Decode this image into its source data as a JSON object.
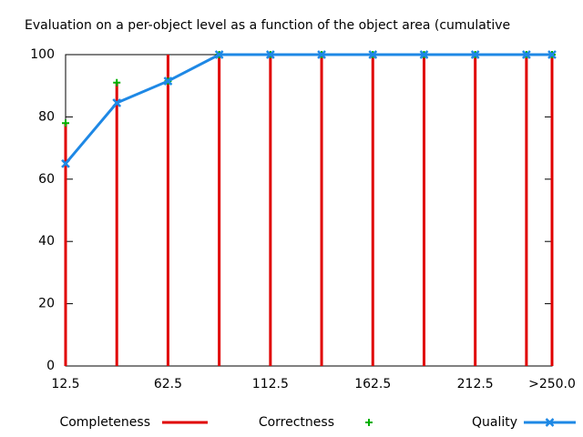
{
  "chart_data": {
    "type": "impulse-line",
    "title": "Evaluation on a per-object level as a function of the object area (cumulative",
    "x": [
      12.5,
      37.5,
      62.5,
      87.5,
      112.5,
      137.5,
      162.5,
      187.5,
      212.5,
      237.5,
      250
    ],
    "xlim": [
      12.5,
      250
    ],
    "xticks": [
      12.5,
      62.5,
      112.5,
      162.5,
      212.5,
      {
        "value": 250,
        "label": ">250.0"
      }
    ],
    "ylim": [
      0,
      100
    ],
    "yticks": [
      0,
      20,
      40,
      60,
      80,
      100
    ],
    "grid": false,
    "legend": "bottom",
    "series": [
      {
        "name": "Completeness",
        "color": "#e00000",
        "style": "impulses",
        "values": [
          78,
          91,
          100,
          100,
          100,
          100,
          100,
          100,
          100,
          100,
          100
        ]
      },
      {
        "name": "Correctness",
        "color": "#00b000",
        "style": "points",
        "values": [
          78,
          91,
          91.5,
          100,
          100,
          100,
          100,
          100,
          100,
          100,
          100
        ]
      },
      {
        "name": "Quality",
        "color": "#1e88e5",
        "style": "linespoints",
        "values": [
          65,
          84.5,
          91.5,
          100,
          100,
          100,
          100,
          100,
          100,
          100,
          100
        ]
      }
    ]
  }
}
